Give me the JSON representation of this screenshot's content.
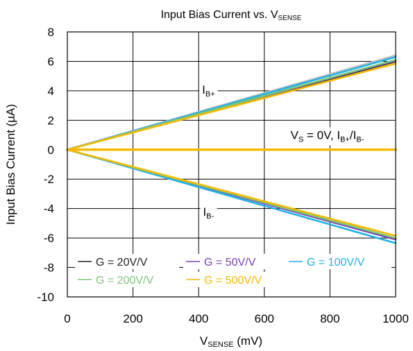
{
  "chart_data": {
    "type": "line",
    "title": {
      "main": "Input Bias Current vs. V",
      "sub": "SENSE"
    },
    "xlabel": {
      "main": "V",
      "sub": "SENSE",
      "tail": " (mV)"
    },
    "ylabel": "Input Bias Current (µA)",
    "xlim": [
      0,
      1000
    ],
    "ylim": [
      -10,
      8
    ],
    "x_ticks": [
      "0",
      "200",
      "400",
      "600",
      "800",
      "1000"
    ],
    "y_ticks": [
      "8",
      "6",
      "4",
      "2",
      "0",
      "-2",
      "-4",
      "-6",
      "-8",
      "-10"
    ],
    "grid": true,
    "legend_position": "bottom-left",
    "series": [
      {
        "name": "G = 20V/V",
        "color": "#222222",
        "x": [
          0,
          1000
        ],
        "y_ib_plus": [
          0,
          6.0
        ],
        "y_ib_minus": [
          0,
          -6.05
        ],
        "y_vs0": [
          0,
          0
        ]
      },
      {
        "name": "G = 50V/V",
        "color": "#7b3fb0",
        "x": [
          0,
          1000
        ],
        "y_ib_plus": [
          0,
          6.05
        ],
        "y_ib_minus": [
          0,
          -6.1
        ],
        "y_vs0": [
          0,
          0
        ]
      },
      {
        "name": "G = 100V/V",
        "color": "#1fb0e6",
        "x": [
          0,
          1000
        ],
        "y_ib_plus": [
          0,
          6.3
        ],
        "y_ib_minus": [
          0,
          -6.35
        ],
        "y_vs0": [
          0,
          0
        ]
      },
      {
        "name": "G = 200V/V",
        "color": "#7cc576",
        "x": [
          0,
          1000
        ],
        "y_ib_plus": [
          0,
          6.1
        ],
        "y_ib_minus": [
          0,
          -6.0
        ],
        "y_vs0": [
          0,
          0
        ]
      },
      {
        "name": "G = 500V/V",
        "color": "#f5b800",
        "x": [
          0,
          1000
        ],
        "y_ib_plus": [
          0,
          5.85
        ],
        "y_ib_minus": [
          0,
          -5.85
        ],
        "y_vs0": [
          0,
          0
        ]
      }
    ],
    "extra_trace": {
      "color": "#c0c0c0",
      "x": [
        0,
        1000
      ],
      "y": [
        0,
        6.4
      ]
    },
    "annotations": {
      "ib_plus": {
        "main": "I",
        "sub": "B+",
        "x": 430,
        "y": 4.1
      },
      "ib_minus": {
        "main": "I",
        "sub": "B-",
        "x": 430,
        "y": -4.2
      },
      "vs0": {
        "part1": "V",
        "sub1": "S",
        "part2": " = 0V, I",
        "sub2": "B+",
        "part3": "/I",
        "sub3": "B-",
        "x": 680,
        "y": 1.0
      }
    }
  }
}
